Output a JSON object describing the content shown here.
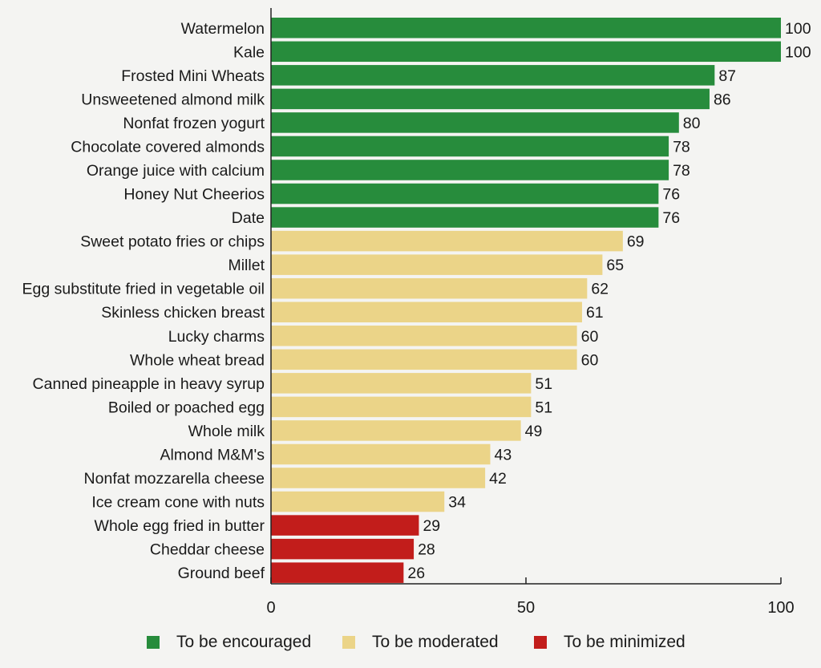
{
  "chart_data": {
    "type": "bar",
    "orientation": "horizontal",
    "categories": [
      "Watermelon",
      "Kale",
      "Frosted Mini Wheats",
      "Unsweetened almond milk",
      "Nonfat frozen yogurt",
      "Chocolate covered almonds",
      "Orange juice with calcium",
      "Honey Nut Cheerios",
      "Date",
      "Sweet potato fries or chips",
      "Millet",
      "Egg substitute fried in vegetable oil",
      "Skinless chicken breast",
      "Lucky charms",
      "Whole wheat bread",
      "Canned pineapple in heavy syrup",
      "Boiled or poached egg",
      "Whole milk",
      "Almond M&M's",
      "Nonfat mozzarella cheese",
      "Ice cream cone with nuts",
      "Whole egg fried in butter",
      "Cheddar cheese",
      "Ground beef"
    ],
    "values": [
      100,
      100,
      87,
      86,
      80,
      78,
      78,
      76,
      76,
      69,
      65,
      62,
      61,
      60,
      60,
      51,
      51,
      49,
      43,
      42,
      34,
      29,
      28,
      26
    ],
    "groups": [
      0,
      0,
      0,
      0,
      0,
      0,
      0,
      0,
      0,
      1,
      1,
      1,
      1,
      1,
      1,
      1,
      1,
      1,
      1,
      1,
      1,
      2,
      2,
      2
    ],
    "legend": [
      {
        "label": "To be encouraged",
        "color": "#278c3c"
      },
      {
        "label": "To be moderated",
        "color": "#ebd488"
      },
      {
        "label": "To be minimized",
        "color": "#c21d1b"
      }
    ],
    "x_ticks": [
      "0",
      "50",
      "100"
    ],
    "xlim": [
      0,
      100
    ],
    "data_labels": true,
    "grid": false,
    "legend_position": "bottom",
    "title": "",
    "xlabel": "",
    "ylabel": ""
  }
}
